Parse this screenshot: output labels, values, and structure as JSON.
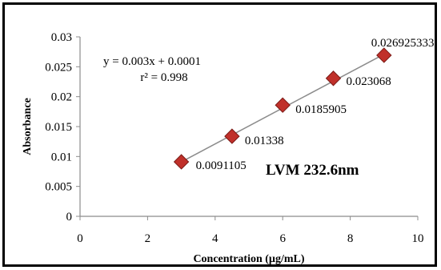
{
  "chart_data": {
    "type": "scatter",
    "title": "LVM 232.6nm",
    "xlabel": "Concentration (µg/mL)",
    "ylabel": "Absorbance",
    "xlim": [
      0,
      10
    ],
    "ylim": [
      0,
      0.03
    ],
    "xticks": [
      "0",
      "2",
      "4",
      "6",
      "8",
      "10"
    ],
    "yticks": [
      "0",
      "0.005",
      "0.01",
      "0.015",
      "0.02",
      "0.025",
      "0.03"
    ],
    "grid": false,
    "legend": "none",
    "series": [
      {
        "x": [
          3,
          4.5,
          6,
          7.5,
          9
        ],
        "y": [
          0.0091105,
          0.01338,
          0.0185905,
          0.023068,
          0.026925333
        ],
        "labels": [
          "0.0091105",
          "0.01338",
          "0.0185905",
          "0.023068",
          "0.026925333"
        ],
        "marker": "diamond",
        "color": "#c0302a"
      }
    ],
    "trendline": {
      "equation": "y = 0.003x + 0.0001",
      "r2": "r² = 0.998",
      "slope": 0.003,
      "intercept": 0.0001,
      "color": "#8c8c8c"
    }
  }
}
